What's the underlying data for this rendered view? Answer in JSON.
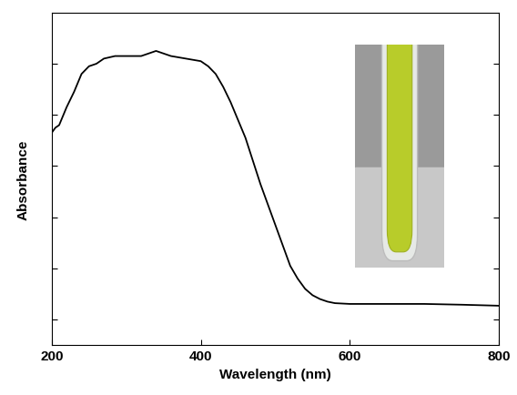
{
  "chart_data": {
    "type": "line",
    "x_label": "Wavelength (nm)",
    "y_label": "Absorbance",
    "x": [
      200,
      205,
      210,
      220,
      230,
      240,
      250,
      260,
      270,
      285,
      300,
      320,
      340,
      360,
      380,
      400,
      410,
      420,
      430,
      440,
      450,
      460,
      470,
      480,
      490,
      500,
      510,
      520,
      530,
      540,
      550,
      560,
      570,
      580,
      600,
      650,
      700,
      750,
      800
    ],
    "values": [
      0.73,
      0.75,
      0.76,
      0.83,
      0.89,
      0.96,
      0.99,
      1.0,
      1.02,
      1.03,
      1.03,
      1.03,
      1.05,
      1.03,
      1.02,
      1.01,
      0.99,
      0.96,
      0.91,
      0.85,
      0.78,
      0.71,
      0.62,
      0.53,
      0.45,
      0.37,
      0.29,
      0.21,
      0.16,
      0.12,
      0.095,
      0.08,
      0.07,
      0.064,
      0.061,
      0.061,
      0.061,
      0.058,
      0.054
    ],
    "color": "#000000",
    "xlim": [
      200,
      800
    ],
    "xticks": [
      200,
      400,
      600,
      800
    ],
    "ylim": [
      -0.1,
      1.2
    ],
    "yticks": [
      0,
      0.2,
      0.4,
      0.6,
      0.8,
      1.0
    ],
    "tick_labels": "x",
    "grid": false
  }
}
